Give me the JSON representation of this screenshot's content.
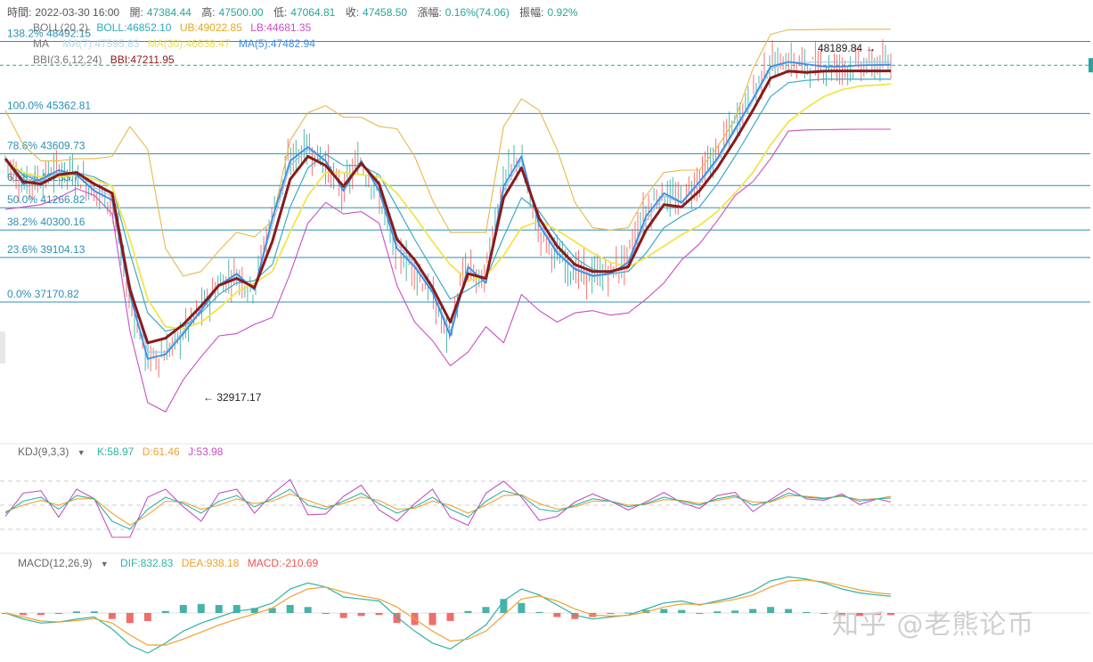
{
  "colors": {
    "bull": "#26a69a",
    "bear": "#ef5350",
    "boll_mid": "#3fa9c8",
    "boll_up": "#e8b84a",
    "boll_low": "#c94fc3",
    "ma5": "#3a8ee6",
    "ma7": "#9ec8e8",
    "ma30": "#f2e44a",
    "bbi": "#8b1a1a",
    "fib": "#2b8fb3",
    "k": "#2fb3a3",
    "d": "#f0a030",
    "j": "#c94fc3",
    "dif": "#2fb3a3",
    "dea": "#f0a030"
  },
  "info": {
    "time_label": "時間:",
    "time": "2022-03-30 16:00",
    "open_label": "開:",
    "open": "47384.44",
    "high_label": "高:",
    "high": "47500.00",
    "low_label": "低:",
    "low": "47064.81",
    "close_label": "收:",
    "close": "47458.50",
    "change_label": "漲幅:",
    "change": "0.16%(74.06)",
    "amp_label": "振幅:",
    "amp": "0.92%"
  },
  "legend": {
    "boll": {
      "name": "BOLL(20,2)",
      "mid": "BOLL:46852.10",
      "up": "UB:49022.85",
      "low": "LB:44681.35"
    },
    "ma": {
      "name": "MA",
      "ma7": "MA(7):47595.83",
      "ma30": "MA(30):46638.47",
      "ma5": "MA(5):47482.94"
    },
    "bbi": {
      "name": "BBI(3,6,12,24)",
      "value": "BBI:47211.95"
    }
  },
  "kdj": {
    "name": "KDJ(9,3,3)",
    "k": "K:58.97",
    "d": "D:61.46",
    "j": "J:53.98"
  },
  "macd": {
    "name": "MACD(12,26,9)",
    "dif": "DIF:832.83",
    "dea": "DEA:938.18",
    "macd": "MACD:-210.69"
  },
  "annotations": {
    "high": "48189.84",
    "low": "32917.17"
  },
  "watermark": "知乎 @老熊论币",
  "chart_data": {
    "type": "line",
    "x": [
      0,
      4,
      8,
      12,
      16,
      20,
      24,
      28,
      32,
      36,
      40,
      44,
      48,
      52,
      56,
      60,
      64,
      68,
      72,
      76,
      80,
      84,
      88,
      92,
      96,
      100,
      104,
      108,
      112,
      116,
      120,
      124,
      128,
      132,
      136,
      140,
      144,
      148,
      152,
      156,
      160,
      164,
      168,
      172,
      176,
      180,
      184,
      188,
      192,
      196,
      199
    ],
    "fib_levels": [
      {
        "label": "138.2% 48492.15",
        "value": 48492.15
      },
      {
        "label": "100.0% 45362.81",
        "value": 45362.81
      },
      {
        "label": "78.6% 43609.73",
        "value": 43609.73
      },
      {
        "label": "61.8% 42233.7",
        "value": 42233.7
      },
      {
        "label": "50.0% 41266.82",
        "value": 41266.82
      },
      {
        "label": "38.2% 40300.16",
        "value": 40300.16
      },
      {
        "label": "23.6% 39104.13",
        "value": 39104.13
      },
      {
        "label": "0.0% 37170.82",
        "value": 37170.82
      }
    ],
    "current_price": 47458.5,
    "series": [
      {
        "key": "ma5",
        "values": [
          43400,
          42300,
          42500,
          42900,
          42700,
          42000,
          41600,
          37500,
          34700,
          34900,
          35800,
          36800,
          37900,
          38400,
          37700,
          40800,
          43300,
          43900,
          43300,
          42000,
          43300,
          42000,
          39500,
          38700,
          37600,
          35700,
          38700,
          38000,
          42200,
          43500,
          40500,
          39300,
          38600,
          38300,
          38400,
          38900,
          40900,
          41900,
          41500,
          42400,
          43400,
          44700,
          46000,
          47400,
          47600,
          47500,
          47400,
          47400,
          47450,
          47470,
          47480
        ]
      },
      {
        "key": "bbi",
        "values": [
          43400,
          42400,
          42300,
          42700,
          42800,
          42300,
          41900,
          37700,
          35400,
          35600,
          36200,
          37000,
          37900,
          38200,
          37800,
          39800,
          42500,
          43500,
          43100,
          42200,
          43200,
          42300,
          39900,
          39000,
          37800,
          36300,
          38400,
          38200,
          41700,
          43000,
          40800,
          39600,
          38800,
          38500,
          38500,
          38700,
          40300,
          41400,
          41300,
          42000,
          43000,
          44200,
          45500,
          46900,
          47200,
          47150,
          47200,
          47210,
          47211,
          47212,
          47212
        ]
      },
      {
        "key": "ma30",
        "values": [
          43300,
          42800,
          42600,
          42600,
          42700,
          42500,
          42200,
          39900,
          37300,
          36100,
          36000,
          36300,
          36900,
          37600,
          38000,
          38500,
          40200,
          41800,
          42800,
          42800,
          42700,
          42600,
          41900,
          40900,
          39800,
          38800,
          38100,
          38300,
          39200,
          40400,
          40700,
          40300,
          39800,
          39300,
          38900,
          38700,
          39100,
          39600,
          40100,
          40500,
          41100,
          41900,
          42800,
          44000,
          45000,
          45600,
          46100,
          46400,
          46550,
          46600,
          46638
        ]
      },
      {
        "key": "boll_mid",
        "values": [
          43300,
          42700,
          42400,
          42600,
          42800,
          42600,
          42200,
          39300,
          36700,
          35900,
          36100,
          36700,
          37500,
          38000,
          38100,
          38800,
          41300,
          43000,
          43600,
          43100,
          43100,
          42700,
          41300,
          39900,
          38600,
          37300,
          37700,
          38200,
          40000,
          41700,
          41100,
          40000,
          39100,
          38600,
          38400,
          38500,
          39300,
          40400,
          40900,
          41300,
          42300,
          43500,
          44800,
          46100,
          46700,
          46800,
          46850,
          46852,
          46852,
          46852,
          46852
        ]
      },
      {
        "key": "boll_up",
        "values": [
          45500,
          44000,
          43300,
          43300,
          43400,
          43400,
          43500,
          44800,
          43800,
          39500,
          38300,
          38500,
          39400,
          40200,
          40000,
          40700,
          44200,
          45400,
          45700,
          45200,
          45200,
          44800,
          44700,
          43500,
          41600,
          40200,
          40200,
          40200,
          44800,
          46000,
          45500,
          43800,
          41500,
          40400,
          40300,
          40400,
          41800,
          42800,
          42900,
          42900,
          43900,
          45100,
          47300,
          48800,
          49000,
          49000,
          49010,
          49020,
          49022,
          49022,
          49022
        ]
      },
      {
        "key": "boll_low",
        "values": [
          41200,
          41300,
          41400,
          41700,
          42100,
          41800,
          41000,
          35900,
          32800,
          32400,
          33800,
          34800,
          35700,
          35800,
          36200,
          36500,
          38400,
          40600,
          41500,
          41000,
          41100,
          40600,
          37900,
          36300,
          35500,
          34400,
          35000,
          36100,
          35400,
          37500,
          36800,
          36300,
          36700,
          36800,
          36600,
          36700,
          37300,
          38000,
          39000,
          39700,
          40700,
          41800,
          42400,
          43400,
          44600,
          44650,
          44660,
          44670,
          44680,
          44681,
          44681
        ]
      },
      {
        "key": "ma7",
        "values": [
          43350,
          42500,
          42450,
          42800,
          42800,
          42150,
          41750,
          38000,
          35000,
          35000,
          35900,
          36850,
          37900,
          38350,
          37750,
          40500,
          43100,
          43800,
          43300,
          42100,
          43250,
          42150,
          39700,
          38800,
          37650,
          35900,
          38550,
          38050,
          42000,
          43350,
          40600,
          39400,
          38650,
          38350,
          38400,
          38800,
          40700,
          41800,
          41450,
          42300,
          43300,
          44600,
          45900,
          47300,
          47600,
          47590,
          47595,
          47595,
          47595,
          47596,
          47596
        ]
      }
    ],
    "kdj": {
      "k": [
        40,
        55,
        60,
        45,
        62,
        58,
        30,
        20,
        45,
        60,
        52,
        40,
        55,
        62,
        48,
        58,
        70,
        50,
        45,
        55,
        65,
        52,
        40,
        48,
        60,
        45,
        35,
        55,
        68,
        62,
        45,
        42,
        50,
        58,
        55,
        48,
        52,
        60,
        55,
        50,
        58,
        62,
        50,
        55,
        65,
        60,
        58,
        62,
        55,
        58,
        59
      ],
      "d": [
        42,
        50,
        56,
        50,
        58,
        58,
        40,
        25,
        38,
        55,
        54,
        45,
        50,
        58,
        52,
        55,
        64,
        56,
        48,
        52,
        60,
        56,
        45,
        46,
        55,
        50,
        40,
        50,
        62,
        63,
        52,
        45,
        48,
        55,
        55,
        50,
        51,
        57,
        56,
        52,
        56,
        60,
        54,
        54,
        62,
        61,
        59,
        61,
        57,
        58,
        61
      ],
      "j": [
        36,
        65,
        68,
        35,
        70,
        58,
        10,
        10,
        60,
        70,
        48,
        30,
        65,
        70,
        40,
        64,
        82,
        38,
        39,
        61,
        75,
        44,
        30,
        52,
        70,
        35,
        25,
        65,
        80,
        60,
        31,
        36,
        54,
        64,
        55,
        44,
        54,
        66,
        53,
        46,
        62,
        66,
        42,
        57,
        71,
        58,
        56,
        64,
        51,
        58,
        54
      ]
    },
    "macd": {
      "dif": [
        0,
        -300,
        -500,
        -450,
        -300,
        -200,
        -800,
        -1600,
        -2000,
        -1500,
        -900,
        -500,
        -200,
        100,
        200,
        500,
        1200,
        1500,
        1300,
        800,
        700,
        600,
        -200,
        -900,
        -1500,
        -1800,
        -1200,
        -600,
        600,
        1200,
        900,
        400,
        -100,
        -300,
        -200,
        -100,
        200,
        500,
        600,
        400,
        600,
        800,
        1100,
        1600,
        1800,
        1700,
        1500,
        1200,
        1000,
        900,
        833
      ],
      "dea": [
        0,
        -200,
        -400,
        -450,
        -380,
        -280,
        -500,
        -1100,
        -1600,
        -1600,
        -1300,
        -950,
        -600,
        -300,
        -50,
        250,
        800,
        1200,
        1300,
        1050,
        850,
        700,
        300,
        -300,
        -900,
        -1400,
        -1300,
        -900,
        -100,
        700,
        850,
        600,
        200,
        -100,
        -150,
        -120,
        50,
        300,
        450,
        430,
        520,
        680,
        900,
        1300,
        1600,
        1650,
        1550,
        1350,
        1150,
        1000,
        938
      ]
    }
  }
}
